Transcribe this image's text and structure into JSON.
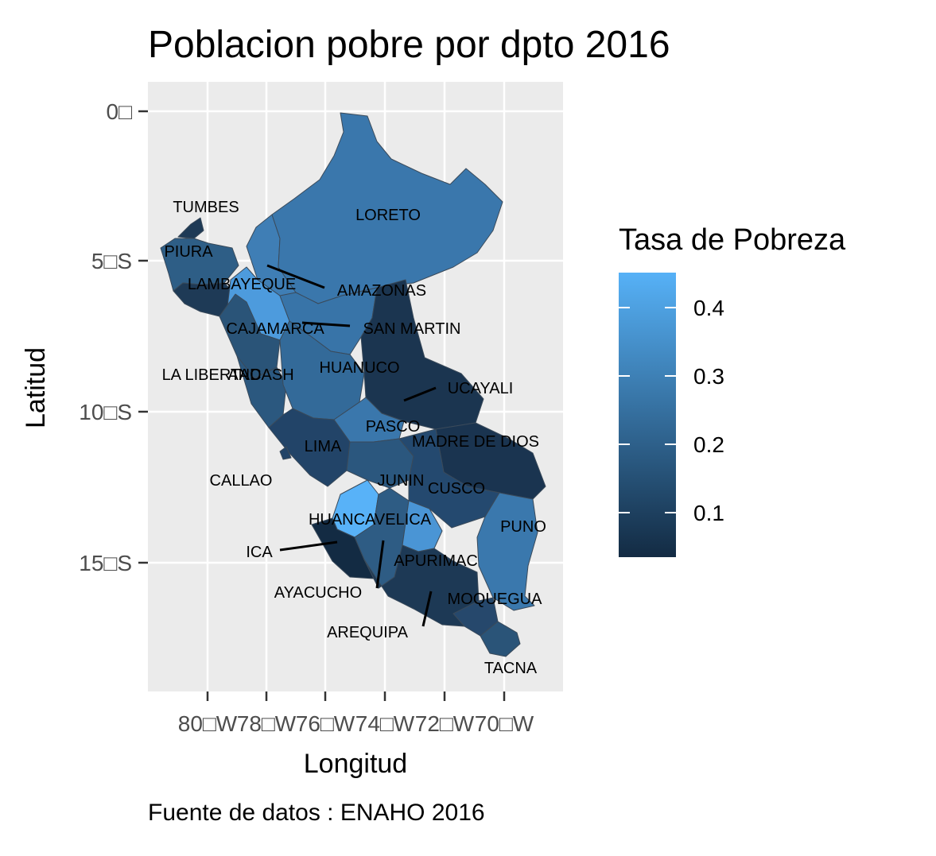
{
  "title": "Poblacion pobre por dpto 2016",
  "caption": "Fuente de datos : ENAHO 2016",
  "axes": {
    "xlabel": "Longitud",
    "ylabel": "Latitud",
    "x_ticks": [
      "80□W",
      "78□W",
      "76□W",
      "74□W",
      "72□W",
      "70□W"
    ],
    "y_ticks": [
      "0□",
      "5□S",
      "10□S",
      "15□S"
    ]
  },
  "legend": {
    "title": "Tasa de Pobreza",
    "placement": "right",
    "labels": [
      "0.4",
      "0.3",
      "0.2",
      "0.1"
    ],
    "low_color": "#132B43",
    "high_color": "#56B1F7"
  },
  "colors": {
    "panel_bg": "#EBEBEB",
    "grid": "#FFFFFF",
    "border": "#3a4a5a"
  },
  "departments": [
    {
      "name": "TUMBES"
    },
    {
      "name": "PIURA"
    },
    {
      "name": "LAMBAYEQUE"
    },
    {
      "name": "AMAZONAS"
    },
    {
      "name": "LORETO"
    },
    {
      "name": "CAJAMARCA"
    },
    {
      "name": "SAN MARTIN"
    },
    {
      "name": "LA LIBERTAD"
    },
    {
      "name": "ANCASH"
    },
    {
      "name": "HUANUCO"
    },
    {
      "name": "UCAYALI"
    },
    {
      "name": "PASCO"
    },
    {
      "name": "LIMA"
    },
    {
      "name": "MADRE DE DIOS"
    },
    {
      "name": "CALLAO"
    },
    {
      "name": "JUNIN"
    },
    {
      "name": "CUSCO"
    },
    {
      "name": "HUANCAVELICA"
    },
    {
      "name": "PUNO"
    },
    {
      "name": "ICA"
    },
    {
      "name": "APURIMAC"
    },
    {
      "name": "AYACUCHO"
    },
    {
      "name": "MOQUEGUA"
    },
    {
      "name": "AREQUIPA"
    },
    {
      "name": "TACNA"
    }
  ]
}
